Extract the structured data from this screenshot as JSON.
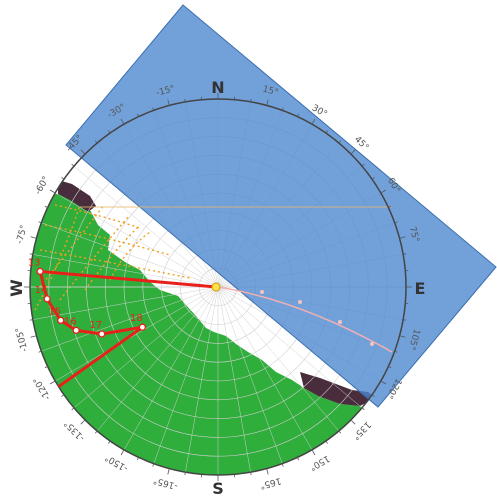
{
  "diagram": {
    "cardinals": {
      "north": "N",
      "south": "S",
      "east": "E",
      "west": "W"
    },
    "azimuth_labels": [
      {
        "az": 15,
        "text": "15°"
      },
      {
        "az": 30,
        "text": "30°"
      },
      {
        "az": 45,
        "text": "45°"
      },
      {
        "az": 60,
        "text": "60°"
      },
      {
        "az": 75,
        "text": "75°"
      },
      {
        "az": 105,
        "text": "105°"
      },
      {
        "az": 120,
        "text": "120°"
      },
      {
        "az": 135,
        "text": "135°"
      },
      {
        "az": 150,
        "text": "150°"
      },
      {
        "az": 165,
        "text": "165°"
      },
      {
        "az": 195,
        "text": "-165°"
      },
      {
        "az": 210,
        "text": "-150°"
      },
      {
        "az": 225,
        "text": "-135°"
      },
      {
        "az": 240,
        "text": "-120°"
      },
      {
        "az": 255,
        "text": "-105°"
      },
      {
        "az": 285,
        "text": "-75°"
      },
      {
        "az": 300,
        "text": "-60°"
      },
      {
        "az": 315,
        "text": "-45°"
      },
      {
        "az": 330,
        "text": "-30°"
      },
      {
        "az": 345,
        "text": "-15°"
      }
    ],
    "sun_path_hours": [
      {
        "hour": "13",
        "az": 275,
        "alt": 4.5
      },
      {
        "hour": "14",
        "az": 266,
        "alt": 8
      },
      {
        "hour": "15",
        "az": 258,
        "alt": 13
      },
      {
        "hour": "16",
        "az": 253,
        "alt": 19
      },
      {
        "hour": "17",
        "az": 248,
        "alt": 30
      },
      {
        "hour": "18",
        "az": 242,
        "alt": 49
      }
    ],
    "colors": {
      "ground": "#2fae3c",
      "sky_free": "#ffffff",
      "obstruction_dark": "#4a2d3d",
      "plane": "#4a86d0",
      "sun_path": "#e8201a",
      "analemma": "#f0a020",
      "grid": "#cfcfcf"
    }
  }
}
